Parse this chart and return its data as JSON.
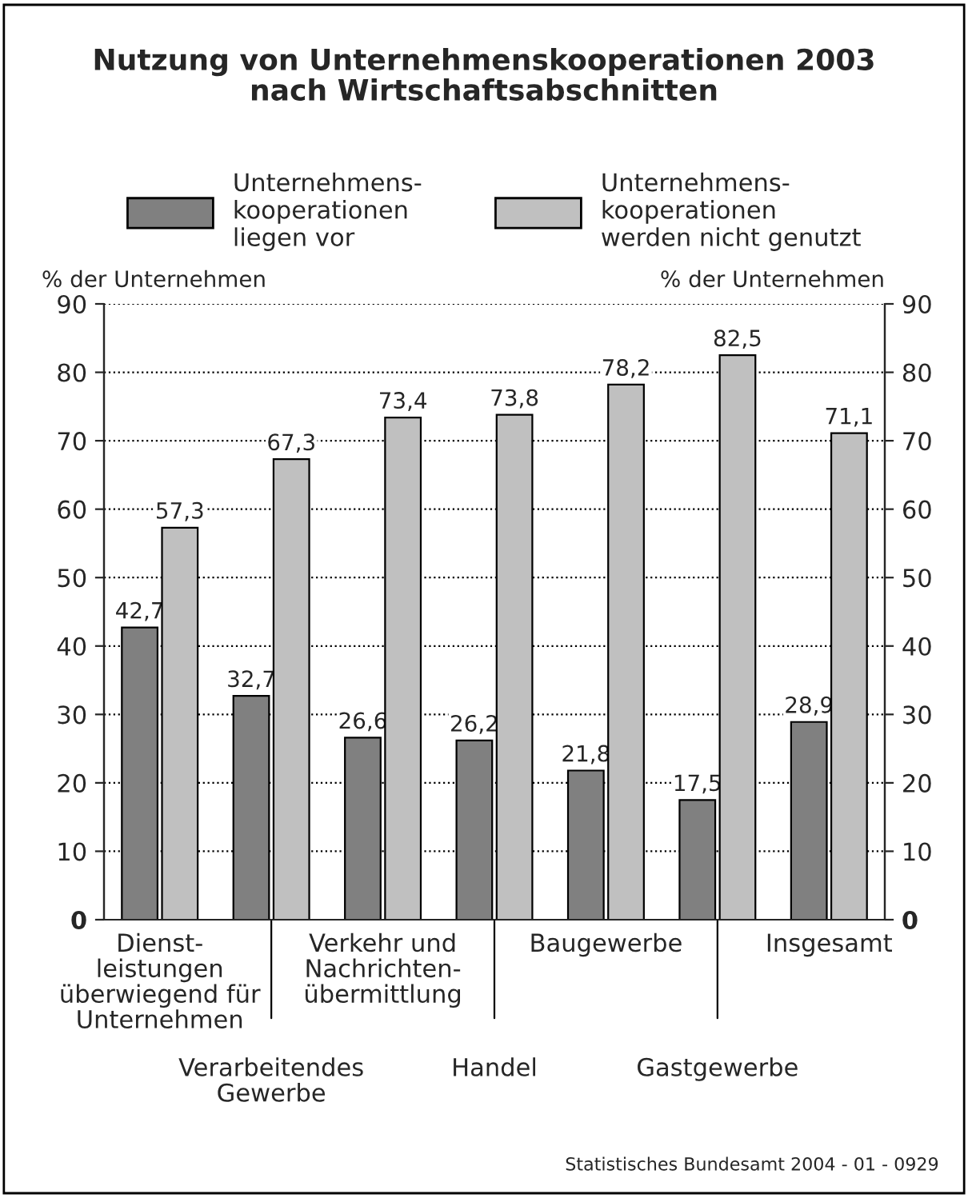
{
  "chart_data": {
    "type": "bar",
    "title": "Nutzung von Unternehmenskooperationen 2003\nnach Wirtschaftsabschnitten",
    "categories": [
      "Dienst-\nleistungen\nüberwiegend für\nUnternehmen",
      "Verarbeitendes\nGewerbe",
      "Verkehr und\nNachrichten-\nübermittlung",
      "Handel",
      "Baugewerbe",
      "Gastgewerbe",
      "Insgesamt"
    ],
    "series": [
      {
        "name": "Unternehmens-\nkooperationen\nliegen vor",
        "color": "#808080",
        "values": [
          42.7,
          32.7,
          26.6,
          26.2,
          21.8,
          17.5,
          28.9
        ],
        "value_labels": [
          "42,7",
          "32,7",
          "26,6",
          "26,2",
          "21,8",
          "17,5",
          "28,9"
        ]
      },
      {
        "name": "Unternehmens-\nkooperationen\nwerden nicht genutzt",
        "color": "#c0c0c0",
        "values": [
          57.3,
          67.3,
          73.4,
          73.8,
          78.2,
          82.5,
          71.1
        ],
        "value_labels": [
          "57,3",
          "67,3",
          "73,4",
          "73,8",
          "78,2",
          "82,5",
          "71,1"
        ]
      }
    ],
    "ylabel": "% der Unternehmen",
    "y2label": "% der Unternehmen",
    "ylim": [
      0,
      90
    ],
    "yticks": [
      0,
      10,
      20,
      30,
      40,
      50,
      60,
      70,
      80,
      90
    ],
    "y2lim": [
      0,
      90
    ],
    "y2ticks": [
      0,
      10,
      20,
      30,
      40,
      50,
      60,
      70,
      80,
      90
    ],
    "grid": "y",
    "legend": "top",
    "annotations": [
      "Statistisches Bundesamt 2004 - 01 - 0929"
    ]
  }
}
